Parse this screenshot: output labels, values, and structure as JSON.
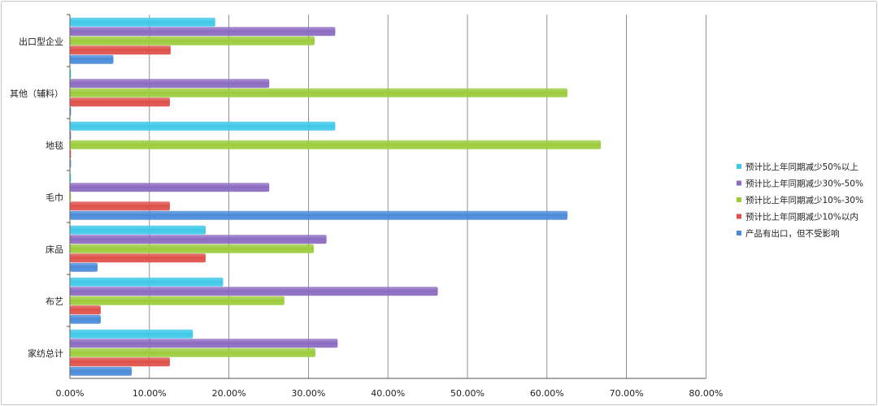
{
  "chart_data": {
    "type": "bar",
    "orientation": "horizontal",
    "categories": [
      "出口型企业",
      "其他（辅料）",
      "地毯",
      "毛巾",
      "床品",
      "布艺",
      "家纺总计"
    ],
    "series": [
      {
        "name": "预计比上年同期减少50%以上",
        "color": "#3fc8e8",
        "values": [
          18.2,
          0,
          33.3,
          0,
          17.0,
          19.2,
          15.4
        ]
      },
      {
        "name": "预计比上年同期减少30%-50%",
        "color": "#8c6bc0",
        "values": [
          33.3,
          25.0,
          0,
          25.0,
          32.2,
          46.2,
          33.6
        ]
      },
      {
        "name": "预计比上年同期减少10%-30%",
        "color": "#9ccc3c",
        "values": [
          30.7,
          62.5,
          66.7,
          0,
          30.6,
          26.9,
          30.8
        ]
      },
      {
        "name": "预计比上年同期减少10%以内",
        "color": "#e0504a",
        "values": [
          12.6,
          12.5,
          0,
          12.5,
          17.0,
          3.8,
          12.5
        ]
      },
      {
        "name": "产品有出口，但不受影响",
        "color": "#4a8ad8",
        "values": [
          5.4,
          0,
          0,
          62.5,
          3.4,
          3.8,
          7.7
        ]
      }
    ],
    "x_ticks": [
      "0.00%",
      "10.00%",
      "20.00%",
      "30.00%",
      "40.00%",
      "50.00%",
      "60.00%",
      "70.00%",
      "80.00%"
    ],
    "xlim": [
      0,
      80
    ],
    "grid": "vertical",
    "legend_position": "right"
  }
}
